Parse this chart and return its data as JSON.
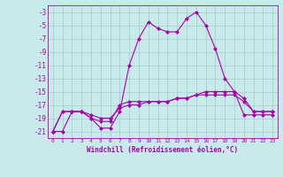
{
  "xlabel": "Windchill (Refroidissement éolien,°C)",
  "background_color": "#c8eaea",
  "grid_color": "#a0cccc",
  "line_color": "#aa00aa",
  "x_values": [
    0,
    1,
    2,
    3,
    4,
    5,
    6,
    7,
    8,
    9,
    10,
    11,
    12,
    13,
    14,
    15,
    16,
    17,
    18,
    19,
    20,
    21,
    22,
    23
  ],
  "series1": [
    -21,
    -21,
    -18,
    -18,
    -19,
    -20.5,
    -20.5,
    -18,
    -11,
    -7,
    -4.5,
    -5.5,
    -6,
    -6,
    -4,
    -3,
    -5,
    -8.5,
    -13,
    -15,
    -18.5,
    -18.5,
    -18.5,
    -18.5
  ],
  "series2": [
    -21,
    -18,
    -18,
    -18,
    -19,
    -19.5,
    -19.5,
    -17,
    -16.5,
    -16.5,
    -16.5,
    -16.5,
    -16.5,
    -16,
    -16,
    -15.5,
    -15,
    -15,
    -15,
    -15,
    -16,
    -18,
    -18,
    -18
  ],
  "series3": [
    -21,
    -18,
    -18,
    -18,
    -18.5,
    -19,
    -19,
    -17.5,
    -17,
    -17,
    -16.5,
    -16.5,
    -16.5,
    -16,
    -16,
    -15.5,
    -15.5,
    -15.5,
    -15.5,
    -15.5,
    -16.5,
    -18,
    -18,
    -18
  ],
  "ylim": [
    -22,
    -2
  ],
  "xlim": [
    -0.5,
    23.5
  ],
  "yticks": [
    -21,
    -19,
    -17,
    -15,
    -13,
    -11,
    -9,
    -7,
    -5,
    -3
  ],
  "xticks": [
    0,
    1,
    2,
    3,
    4,
    5,
    6,
    7,
    8,
    9,
    10,
    11,
    12,
    13,
    14,
    15,
    16,
    17,
    18,
    19,
    20,
    21,
    22,
    23
  ],
  "marker": "D",
  "markersize": 2.5,
  "linewidth": 0.8
}
